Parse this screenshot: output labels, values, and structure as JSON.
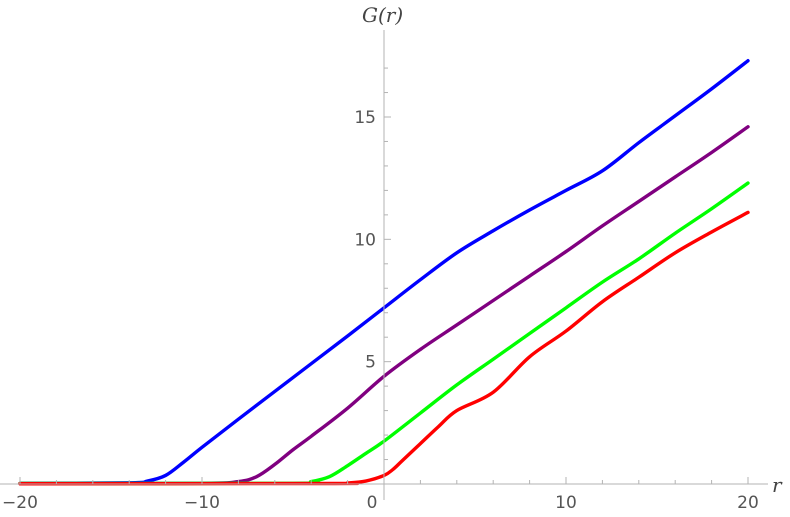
{
  "chart_data": {
    "type": "line",
    "title": "",
    "xlabel": "r",
    "ylabel": "G(r)",
    "xlim": [
      -20,
      20
    ],
    "ylim": [
      0,
      17.5
    ],
    "x_ticks": [
      -20,
      -10,
      0,
      10,
      20
    ],
    "x_tick_labels": [
      "−20",
      "−10",
      "0",
      "10",
      "20"
    ],
    "y_ticks": [
      5,
      10,
      15
    ],
    "y_tick_labels": [
      "5",
      "10",
      "15"
    ],
    "grid": false,
    "legend": "none",
    "series": [
      {
        "color": "#0000ff",
        "x": [
          -20,
          -14,
          -13,
          -12,
          -11,
          -10,
          -8,
          -5,
          -2,
          0,
          2,
          4,
          6,
          8,
          10,
          12,
          14,
          16,
          18,
          20
        ],
        "y": [
          0.02,
          0.05,
          0.12,
          0.35,
          0.9,
          1.5,
          2.65,
          4.35,
          6.05,
          7.2,
          8.35,
          9.45,
          10.35,
          11.2,
          12.0,
          12.8,
          13.95,
          15.05,
          16.15,
          17.3
        ]
      },
      {
        "color": "#800080",
        "x": [
          -20,
          -10,
          -8,
          -7,
          -6,
          -5,
          -4,
          -2,
          0,
          2,
          4,
          6,
          8,
          10,
          12,
          14,
          16,
          18,
          20
        ],
        "y": [
          0.02,
          0.03,
          0.1,
          0.3,
          0.8,
          1.4,
          1.95,
          3.1,
          4.4,
          5.5,
          6.5,
          7.5,
          8.5,
          9.5,
          10.55,
          11.55,
          12.55,
          13.55,
          14.6
        ]
      },
      {
        "color": "#00ff00",
        "x": [
          -20,
          -5,
          -4,
          -3,
          -2,
          -1,
          0,
          2,
          4,
          6,
          8,
          10,
          12,
          14,
          16,
          18,
          20
        ],
        "y": [
          0.02,
          0.03,
          0.1,
          0.3,
          0.75,
          1.25,
          1.75,
          2.9,
          4.05,
          5.1,
          6.15,
          7.2,
          8.25,
          9.2,
          10.25,
          11.25,
          12.3
        ]
      },
      {
        "color": "#ff0000",
        "x": [
          -20,
          -3,
          -2,
          -1,
          0,
          0.5,
          1,
          2,
          3,
          4,
          6,
          8,
          10,
          12,
          14,
          16,
          18,
          20
        ],
        "y": [
          0.01,
          0.02,
          0.04,
          0.12,
          0.35,
          0.6,
          0.95,
          1.65,
          2.35,
          3.0,
          3.75,
          5.2,
          6.25,
          7.45,
          8.45,
          9.45,
          10.3,
          11.1
        ]
      }
    ]
  }
}
